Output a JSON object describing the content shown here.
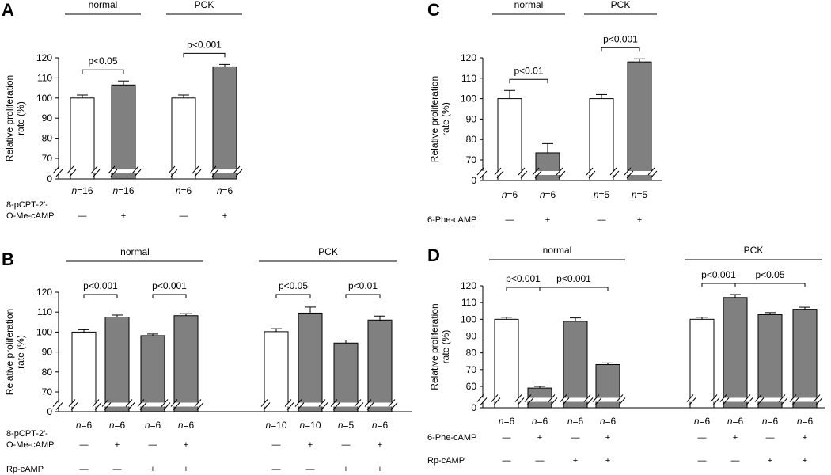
{
  "chart_data": [
    {
      "panel": "A",
      "type": "bar",
      "ylabel": "Relative proliferation rate (%)",
      "ylabel_lines": [
        "Relative proliferation",
        "rate (%)"
      ],
      "yticks": [
        "0",
        "70",
        "80",
        "90",
        "100",
        "110",
        "120"
      ],
      "ylim": [
        0,
        120
      ],
      "axis_break": true,
      "groups": [
        {
          "label": "normal",
          "bars": [
            0,
            1
          ]
        },
        {
          "label": "PCK",
          "bars": [
            2,
            3
          ]
        }
      ],
      "bars": [
        {
          "value": 100,
          "error": 1.5,
          "n": "16",
          "fill": "white"
        },
        {
          "value": 106.5,
          "error": 2,
          "n": "16",
          "fill": "gray"
        },
        {
          "value": 100,
          "error": 1.5,
          "n": "6",
          "fill": "white"
        },
        {
          "value": 115.5,
          "error": 1.2,
          "n": "6",
          "fill": "gray"
        }
      ],
      "comparisons": [
        {
          "from": 0,
          "to": 1,
          "label": "p<0.05"
        },
        {
          "from": 2,
          "to": 3,
          "label": "p<0.001"
        }
      ],
      "treatments": [
        {
          "name_lines": [
            "8-pCPT-2'-",
            "O-Me-cAMP"
          ],
          "signs": [
            "—",
            "+",
            "—",
            "+"
          ]
        }
      ]
    },
    {
      "panel": "B",
      "type": "bar",
      "ylabel": "Relative proliferation rate (%)",
      "ylabel_lines": [
        "Relative proliferation",
        "rate (%)"
      ],
      "yticks": [
        "0",
        "70",
        "80",
        "90",
        "100",
        "110",
        "120"
      ],
      "ylim": [
        0,
        120
      ],
      "axis_break": true,
      "groups": [
        {
          "label": "normal",
          "bars": [
            0,
            1,
            2,
            3
          ]
        },
        {
          "label": "PCK",
          "bars": [
            4,
            5,
            6,
            7
          ]
        }
      ],
      "bars": [
        {
          "value": 100,
          "error": 1.2,
          "n": "6",
          "fill": "white"
        },
        {
          "value": 107.5,
          "error": 1,
          "n": "6",
          "fill": "gray"
        },
        {
          "value": 98.2,
          "error": 0.8,
          "n": "6",
          "fill": "gray"
        },
        {
          "value": 108.2,
          "error": 1,
          "n": "6",
          "fill": "gray"
        },
        {
          "value": 100.2,
          "error": 1.5,
          "n": "10",
          "fill": "white"
        },
        {
          "value": 109.5,
          "error": 3,
          "n": "10",
          "fill": "gray"
        },
        {
          "value": 94.5,
          "error": 1.5,
          "n": "5",
          "fill": "gray"
        },
        {
          "value": 106,
          "error": 2,
          "n": "6",
          "fill": "gray"
        }
      ],
      "comparisons": [
        {
          "from": 0,
          "to": 1,
          "label": "p<0.001"
        },
        {
          "from": 2,
          "to": 3,
          "label": "p<0.001"
        },
        {
          "from": 4,
          "to": 5,
          "label": "p<0.05"
        },
        {
          "from": 6,
          "to": 7,
          "label": "p<0.01"
        }
      ],
      "treatments": [
        {
          "name_lines": [
            "8-pCPT-2'-",
            "O-Me-cAMP"
          ],
          "signs": [
            "—",
            "+",
            "—",
            "+",
            "—",
            "+",
            "—",
            "+"
          ]
        },
        {
          "name_lines": [
            "Rp-cAMP"
          ],
          "signs": [
            "—",
            "—",
            "+",
            "+",
            "—",
            "—",
            "+",
            "+"
          ]
        }
      ]
    },
    {
      "panel": "C",
      "type": "bar",
      "ylabel": "Relative proliferation rate (%)",
      "ylabel_lines": [
        "Relative proliferation",
        "rate (%)"
      ],
      "yticks": [
        "0",
        "70",
        "80",
        "90",
        "100",
        "110",
        "120"
      ],
      "ylim": [
        0,
        120
      ],
      "axis_break": true,
      "groups": [
        {
          "label": "normal",
          "bars": [
            0,
            1
          ]
        },
        {
          "label": "PCK",
          "bars": [
            2,
            3
          ]
        }
      ],
      "bars": [
        {
          "value": 100,
          "error": 4,
          "n": "6",
          "fill": "white"
        },
        {
          "value": 73.5,
          "error": 4.5,
          "n": "6",
          "fill": "gray"
        },
        {
          "value": 100,
          "error": 2,
          "n": "5",
          "fill": "white"
        },
        {
          "value": 118,
          "error": 1.5,
          "n": "5",
          "fill": "gray"
        }
      ],
      "comparisons": [
        {
          "from": 0,
          "to": 1,
          "label": "p<0.01"
        },
        {
          "from": 2,
          "to": 3,
          "label": "p<0.001"
        }
      ],
      "treatments": [
        {
          "name_lines": [
            "6-Phe-cAMP"
          ],
          "signs": [
            "—",
            "+",
            "—",
            "+"
          ]
        }
      ]
    },
    {
      "panel": "D",
      "type": "bar",
      "ylabel": "Relative proliferation rate (%)",
      "ylabel_lines": [
        "Relative proliferation",
        "rate (%)"
      ],
      "yticks": [
        "0",
        "60",
        "70",
        "80",
        "90",
        "100",
        "110",
        "120"
      ],
      "ylim": [
        0,
        120
      ],
      "axis_break": true,
      "groups": [
        {
          "label": "normal",
          "bars": [
            0,
            1,
            2,
            3
          ]
        },
        {
          "label": "PCK",
          "bars": [
            4,
            5,
            6,
            7
          ]
        }
      ],
      "bars": [
        {
          "value": 100,
          "error": 1.2,
          "n": "6",
          "fill": "white"
        },
        {
          "value": 59,
          "error": 1,
          "n": "6",
          "fill": "gray"
        },
        {
          "value": 98.8,
          "error": 2,
          "n": "6",
          "fill": "gray"
        },
        {
          "value": 73,
          "error": 1,
          "n": "6",
          "fill": "gray"
        },
        {
          "value": 100,
          "error": 1.2,
          "n": "6",
          "fill": "white"
        },
        {
          "value": 113,
          "error": 1.8,
          "n": "6",
          "fill": "gray"
        },
        {
          "value": 102.8,
          "error": 1.2,
          "n": "6",
          "fill": "gray"
        },
        {
          "value": 106,
          "error": 1.2,
          "n": "6",
          "fill": "gray"
        }
      ],
      "comparisons": [
        {
          "from": 0,
          "to": 1,
          "label": "p<0.001"
        },
        {
          "from": 1,
          "to": 3,
          "label": "p<0.001"
        },
        {
          "from": 4,
          "to": 5,
          "label": "p<0.001"
        },
        {
          "from": 5,
          "to": 7,
          "label": "p<0.05"
        }
      ],
      "treatments": [
        {
          "name_lines": [
            "6-Phe-cAMP"
          ],
          "signs": [
            "—",
            "+",
            "—",
            "+",
            "—",
            "+",
            "—",
            "+"
          ]
        },
        {
          "name_lines": [
            "Rp-cAMP"
          ],
          "signs": [
            "—",
            "—",
            "+",
            "+",
            "—",
            "—",
            "+",
            "+"
          ]
        }
      ]
    }
  ],
  "colors": {
    "bar_gray": "#808080",
    "bar_white": "#ffffff",
    "ink": "#000000"
  }
}
